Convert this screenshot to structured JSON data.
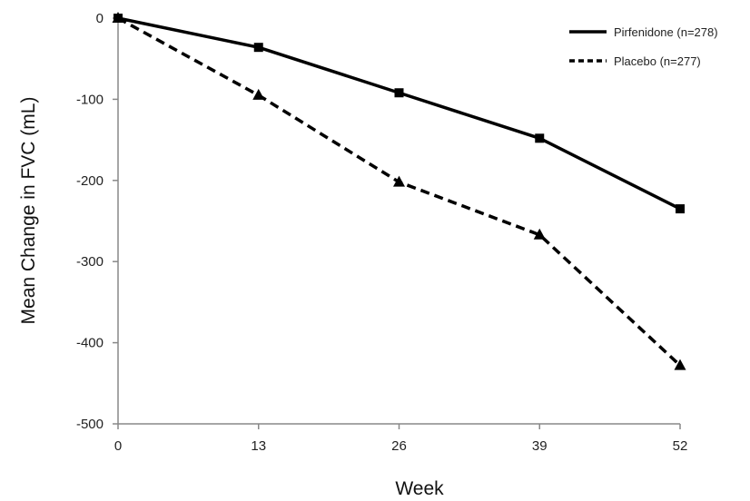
{
  "chart_data": {
    "type": "line",
    "x": [
      0,
      13,
      26,
      39,
      52
    ],
    "xlabel": "Week",
    "ylabel": "Mean Change in FVC (mL)",
    "xlim": [
      0,
      52
    ],
    "ylim": [
      -500,
      0
    ],
    "xticks": [
      "0",
      "13",
      "26",
      "39",
      "52"
    ],
    "yticks": [
      "0",
      "-100",
      "-200",
      "-300",
      "-400",
      "-500"
    ],
    "grid": false,
    "legend_position": "top-right",
    "series": [
      {
        "name": "Pirfenidone (n=278)",
        "values": [
          0,
          -36,
          -92,
          -148,
          -235
        ],
        "style": "solid",
        "marker": "square",
        "color": "#000000"
      },
      {
        "name": "Placebo (n=277)",
        "values": [
          0,
          -95,
          -202,
          -267,
          -428
        ],
        "style": "dashed",
        "marker": "triangle",
        "color": "#000000"
      }
    ]
  }
}
